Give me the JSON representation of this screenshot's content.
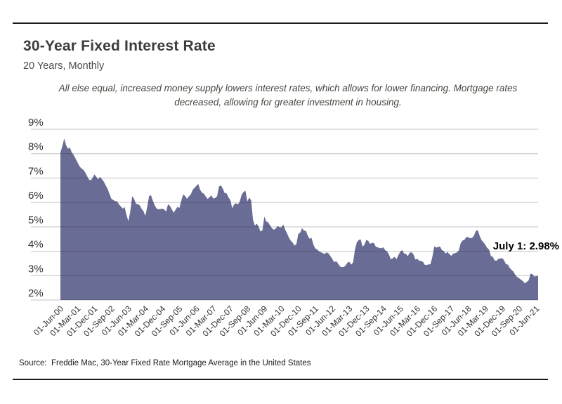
{
  "header": {
    "title": "30-Year Fixed Interest Rate",
    "subtitle": "20 Years, Monthly"
  },
  "annotation": {
    "line1": "All else equal, increased money supply lowers interest rates, which allows for lower financing. Mortgage rates",
    "line2": "decreased, allowing for greater investment in housing."
  },
  "callout": {
    "label": "July 1: 2.98%"
  },
  "source": {
    "text": "Source:  Freddie Mac, 30-Year Fixed Rate Mortgage Average in the United States"
  },
  "colors": {
    "area_fill": "#696c94",
    "gridline": "#23232d",
    "axis_text": "#333333",
    "rule": "#1a1a1a",
    "callout_text": "#000000"
  },
  "chart_data": {
    "type": "area",
    "title": "30-Year Fixed Interest Rate",
    "xlabel": "",
    "ylabel": "",
    "ylim": [
      2,
      9.5
    ],
    "grid": "horizontal",
    "legend": "none",
    "x_start": "01-Jun-00",
    "x_end": "01-Jun-21",
    "x_tick_interval_months": 9,
    "x_tick_labels": [
      "01-Jun-00",
      "01-Mar-01",
      "01-Dec-01",
      "01-Sep-02",
      "01-Jun-03",
      "01-Mar-04",
      "01-Dec-04",
      "01-Sep-05",
      "01-Jun-06",
      "01-Mar-07",
      "01-Dec-07",
      "01-Sep-08",
      "01-Jun-09",
      "01-Mar-10",
      "01-Dec-10",
      "01-Sep-11",
      "01-Jun-12",
      "01-Mar-13",
      "01-Dec-13",
      "01-Sep-14",
      "01-Jun-15",
      "01-Mar-16",
      "01-Dec-16",
      "01-Sep-17",
      "01-Jun-18",
      "01-Mar-19",
      "01-Dec-19",
      "01-Sep-20",
      "01-Jun-21"
    ],
    "y_ticks": [
      2,
      3,
      4,
      5,
      6,
      7,
      8,
      9
    ],
    "y_tick_labels": [
      "2%",
      "3%",
      "4%",
      "5%",
      "6%",
      "7%",
      "8%",
      "9%"
    ],
    "point_annotation": "July 1: 2.98%",
    "series": [
      {
        "name": "30-Year Fixed Rate Mortgage Average in the United States",
        "unit": "%",
        "cadence": "monthly, Jun-2000 through Jul-2021",
        "monthly_values": [
          8.05,
          8.3,
          8.62,
          8.35,
          8.2,
          8.25,
          8.05,
          7.95,
          7.8,
          7.65,
          7.5,
          7.4,
          7.35,
          7.25,
          7.1,
          6.95,
          6.9,
          7.0,
          7.15,
          7.05,
          6.95,
          7.05,
          6.95,
          6.85,
          6.7,
          6.55,
          6.35,
          6.15,
          6.1,
          6.05,
          6.05,
          5.92,
          5.84,
          5.75,
          5.81,
          5.48,
          5.23,
          5.63,
          6.26,
          6.15,
          5.95,
          5.93,
          5.88,
          5.74,
          5.64,
          5.45,
          5.83,
          6.27,
          6.29,
          6.06,
          5.87,
          5.75,
          5.72,
          5.73,
          5.75,
          5.71,
          5.63,
          5.93,
          5.86,
          5.72,
          5.58,
          5.7,
          5.82,
          5.77,
          6.07,
          6.33,
          6.27,
          6.15,
          6.25,
          6.32,
          6.51,
          6.6,
          6.68,
          6.76,
          6.52,
          6.4,
          6.36,
          6.24,
          6.14,
          6.22,
          6.29,
          6.16,
          6.18,
          6.26,
          6.66,
          6.7,
          6.57,
          6.38,
          6.38,
          6.21,
          6.1,
          5.76,
          5.92,
          5.97,
          5.92,
          6.04,
          6.32,
          6.43,
          6.48,
          6.04,
          6.2,
          6.09,
          5.29,
          5.05,
          5.13,
          5.0,
          4.81,
          4.86,
          5.42,
          5.22,
          5.19,
          5.06,
          4.95,
          4.88,
          4.93,
          5.03,
          4.99,
          4.97,
          5.1,
          4.89,
          4.74,
          4.56,
          4.43,
          4.35,
          4.23,
          4.3,
          4.71,
          4.76,
          4.95,
          4.84,
          4.84,
          4.64,
          4.51,
          4.55,
          4.27,
          4.11,
          4.07,
          3.99,
          3.96,
          3.92,
          3.89,
          3.95,
          3.91,
          3.8,
          3.68,
          3.55,
          3.6,
          3.5,
          3.38,
          3.35,
          3.35,
          3.41,
          3.53,
          3.57,
          3.45,
          3.54,
          4.07,
          4.37,
          4.46,
          4.49,
          4.19,
          4.26,
          4.46,
          4.43,
          4.3,
          4.34,
          4.34,
          4.19,
          4.16,
          4.13,
          4.12,
          4.16,
          4.04,
          4.0,
          3.86,
          3.67,
          3.71,
          3.77,
          3.67,
          3.84,
          3.98,
          4.05,
          3.91,
          3.89,
          3.8,
          3.94,
          3.96,
          3.87,
          3.66,
          3.69,
          3.61,
          3.6,
          3.57,
          3.44,
          3.44,
          3.46,
          3.47,
          3.77,
          4.2,
          4.15,
          4.17,
          4.2,
          4.05,
          4.01,
          3.9,
          3.97,
          3.88,
          3.81,
          3.9,
          3.92,
          3.95,
          4.03,
          4.33,
          4.44,
          4.47,
          4.59,
          4.57,
          4.53,
          4.55,
          4.63,
          4.83,
          4.87,
          4.64,
          4.46,
          4.37,
          4.27,
          4.14,
          4.07,
          3.8,
          3.77,
          3.62,
          3.61,
          3.69,
          3.7,
          3.72,
          3.62,
          3.47,
          3.45,
          3.31,
          3.23,
          3.16,
          3.02,
          2.94,
          2.89,
          2.83,
          2.77,
          2.68,
          2.74,
          2.81,
          3.08,
          3.06,
          2.96,
          2.98,
          2.98
        ]
      }
    ]
  }
}
